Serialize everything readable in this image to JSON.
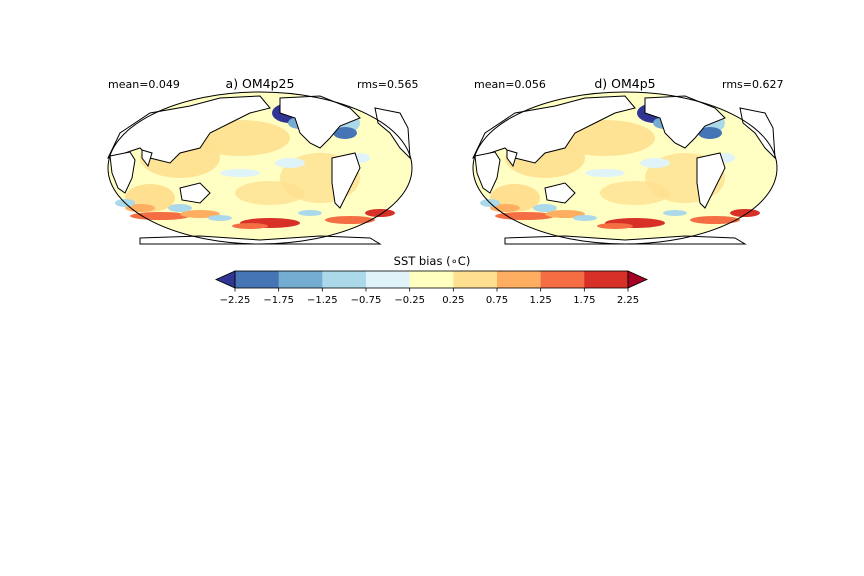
{
  "panels": [
    {
      "title": "a) OM4p25",
      "mean": "mean=0.049",
      "rms": "rms=0.565"
    },
    {
      "title": "d) OM4p5",
      "mean": "mean=0.056",
      "rms": "rms=0.627"
    }
  ],
  "chart_data": {
    "type": "heatmap",
    "colorbar": {
      "label": "SST bias (∘C)",
      "ticks": [
        "−2.25",
        "−1.75",
        "−1.25",
        "−0.75",
        "−0.25",
        "0.25",
        "0.75",
        "1.25",
        "1.75",
        "2.25"
      ],
      "boundaries": [
        -2.25,
        -1.75,
        -1.25,
        -0.75,
        -0.25,
        0.25,
        0.75,
        1.25,
        1.75,
        2.25
      ],
      "colors": [
        "#4575b4",
        "#74add1",
        "#abd9e9",
        "#e0f3f8",
        "#ffffbf",
        "#fee090",
        "#fdae61",
        "#f46d43",
        "#d73027"
      ],
      "under_color": "#313695",
      "over_color": "#a50026",
      "extend": "both"
    }
  }
}
